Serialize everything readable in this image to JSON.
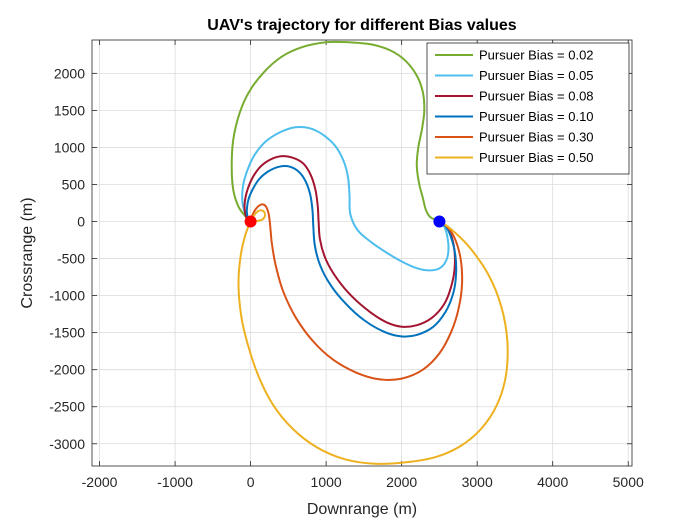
{
  "chart_data": {
    "type": "line",
    "title": "UAV's trajectory for different Bias values",
    "xlabel": "Downrange (m)",
    "ylabel": "Crossrange (m)",
    "xlim": [
      -2100,
      5050
    ],
    "ylim": [
      -3300,
      2450
    ],
    "xticks": [
      -2000,
      -1000,
      0,
      1000,
      2000,
      3000,
      4000,
      5000
    ],
    "yticks": [
      -3000,
      -2500,
      -2000,
      -1500,
      -1000,
      -500,
      0,
      500,
      1000,
      1500,
      2000
    ],
    "grid": true,
    "legend_position": "top-right",
    "series": [
      {
        "name": "Pursuer Bias = 0.02",
        "color": "#77ac30",
        "x": [
          2500,
          2380,
          2320,
          2280,
          2230,
          2200,
          2220,
          2270,
          2300,
          2280,
          2200,
          2050,
          1850,
          1600,
          1300,
          1000,
          700,
          420,
          180,
          -20,
          -150,
          -230,
          -250,
          -230,
          -160,
          -60,
          0
        ],
        "y": [
          0,
          60,
          160,
          320,
          520,
          750,
          1000,
          1250,
          1500,
          1750,
          1970,
          2170,
          2310,
          2390,
          2420,
          2420,
          2360,
          2230,
          2020,
          1750,
          1450,
          1100,
          750,
          430,
          200,
          60,
          0
        ]
      },
      {
        "name": "Pursuer Bias = 0.05",
        "color": "#4dbeee",
        "x": [
          2500,
          2560,
          2600,
          2620,
          2600,
          2520,
          2380,
          2200,
          2000,
          1800,
          1600,
          1420,
          1320,
          1310,
          1290,
          1230,
          1120,
          960,
          780,
          580,
          380,
          200,
          60,
          -40,
          -100,
          -110,
          -80,
          -30,
          0
        ],
        "y": [
          0,
          -60,
          -180,
          -350,
          -500,
          -620,
          -660,
          -630,
          -540,
          -420,
          -280,
          -120,
          100,
          350,
          600,
          820,
          1020,
          1170,
          1260,
          1270,
          1200,
          1080,
          910,
          700,
          480,
          280,
          130,
          40,
          0
        ]
      },
      {
        "name": "Pursuer Bias = 0.08",
        "color": "#a2142f",
        "x": [
          2500,
          2580,
          2650,
          2700,
          2700,
          2650,
          2560,
          2400,
          2200,
          2000,
          1800,
          1580,
          1350,
          1150,
          1000,
          920,
          900,
          890,
          860,
          800,
          700,
          560,
          400,
          250,
          120,
          20,
          -50,
          -80,
          -70,
          -40,
          0
        ],
        "y": [
          0,
          -50,
          -170,
          -400,
          -650,
          -900,
          -1120,
          -1300,
          -1400,
          -1420,
          -1360,
          -1220,
          -1020,
          -780,
          -520,
          -250,
          0,
          200,
          420,
          620,
          780,
          860,
          880,
          830,
          730,
          580,
          400,
          230,
          100,
          30,
          0
        ]
      },
      {
        "name": "Pursuer Bias = 0.10",
        "color": "#0072bd",
        "x": [
          2500,
          2580,
          2650,
          2710,
          2720,
          2680,
          2580,
          2420,
          2200,
          1980,
          1750,
          1500,
          1260,
          1060,
          920,
          850,
          830,
          820,
          790,
          730,
          640,
          520,
          380,
          240,
          120,
          30,
          -30,
          -50,
          -40,
          -20,
          0
        ],
        "y": [
          0,
          -60,
          -200,
          -450,
          -720,
          -980,
          -1220,
          -1420,
          -1530,
          -1550,
          -1480,
          -1330,
          -1110,
          -860,
          -590,
          -320,
          -60,
          150,
          360,
          540,
          670,
          740,
          740,
          680,
          580,
          440,
          290,
          150,
          60,
          15,
          0
        ]
      },
      {
        "name": "Pursuer Bias = 0.30",
        "color": "#d95319",
        "x": [
          2500,
          2600,
          2700,
          2780,
          2800,
          2760,
          2660,
          2500,
          2280,
          2000,
          1700,
          1400,
          1100,
          830,
          600,
          430,
          330,
          280,
          260,
          240,
          210,
          170,
          120,
          70,
          30,
          10,
          0
        ],
        "y": [
          0,
          -70,
          -220,
          -500,
          -820,
          -1150,
          -1480,
          -1780,
          -2000,
          -2120,
          -2130,
          -2040,
          -1870,
          -1620,
          -1300,
          -940,
          -580,
          -280,
          -60,
          100,
          190,
          230,
          220,
          170,
          100,
          40,
          0
        ]
      },
      {
        "name": "Pursuer Bias = 0.50",
        "color": "#edb120",
        "x": [
          2500,
          2650,
          2900,
          3150,
          3320,
          3400,
          3380,
          3260,
          3050,
          2780,
          2450,
          2060,
          1650,
          1250,
          880,
          560,
          300,
          110,
          -20,
          -120,
          -160,
          -130,
          -60,
          20,
          100,
          170,
          190,
          160,
          100,
          40,
          0
        ],
        "y": [
          0,
          -100,
          -350,
          -720,
          -1150,
          -1620,
          -2080,
          -2480,
          -2800,
          -3030,
          -3180,
          -3250,
          -3270,
          -3210,
          -3050,
          -2800,
          -2480,
          -2100,
          -1720,
          -1300,
          -850,
          -450,
          -150,
          40,
          140,
          140,
          80,
          30,
          10,
          0,
          0
        ]
      }
    ],
    "markers": [
      {
        "name": "start-point",
        "x": 0,
        "y": 0,
        "color": "#ff0000"
      },
      {
        "name": "target-point",
        "x": 2500,
        "y": 0,
        "color": "#0000ff"
      }
    ]
  }
}
